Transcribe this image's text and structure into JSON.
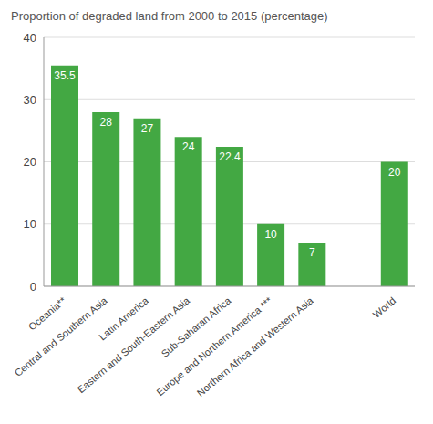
{
  "chart_data": {
    "type": "bar",
    "title": "Proportion of degraded land from 2000 to 2015 (percentage)",
    "categories": [
      "Oceania**",
      "Central and Southern Asia",
      "Latin America",
      "Eastern and South-Eastern Asia",
      "Sub-Saharan Africa",
      "Europe and Northern America ***",
      "Northern Africa and Western Asia",
      null,
      "World"
    ],
    "values": [
      35.5,
      28,
      27,
      24,
      22.4,
      10,
      7,
      null,
      20
    ],
    "color": "#43a843",
    "ylim": [
      0,
      40
    ],
    "yticks": [
      0,
      10,
      20,
      30,
      40
    ],
    "grid": true,
    "data_labels": true
  }
}
